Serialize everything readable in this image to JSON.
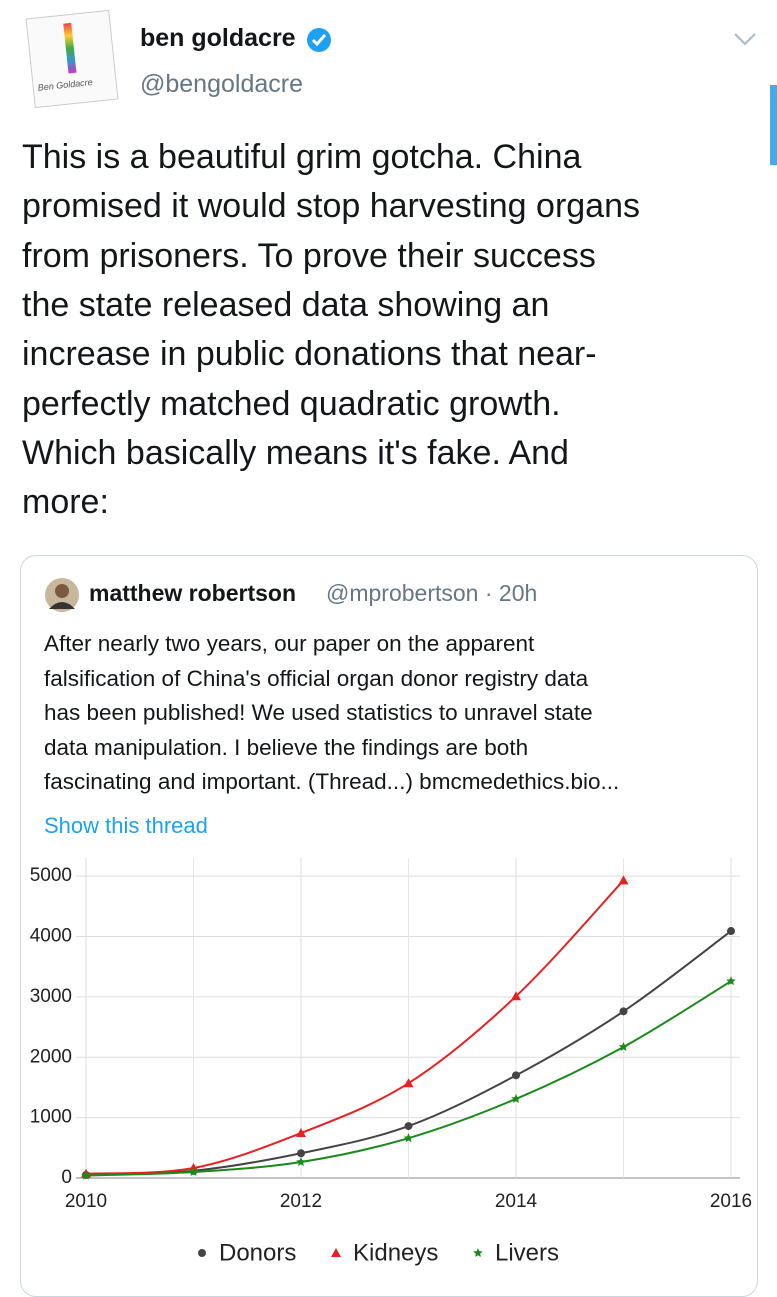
{
  "tweet": {
    "name": "ben goldacre",
    "handle": "@bengoldacre",
    "avatar_text": "Ben Goldacre",
    "text_lines": [
      "This is a beautiful grim gotcha. China",
      "promised it would stop harvesting organs",
      "from prisoners. To prove their success",
      "the state released data showing an",
      "increase in public donations that near-",
      "perfectly matched quadratic growth.",
      "Which basically means it's fake. And",
      "more:"
    ]
  },
  "quote": {
    "name": "matthew robertson",
    "handle_time": "@mprobertson · 20h",
    "text_lines": [
      "After nearly two years, our paper on the apparent",
      "falsification of China's official organ donor registry data",
      "has been published! We used statistics to unravel state",
      "data manipulation. I believe the findings are both",
      "fascinating and important. (Thread...) bmcmedethics.bio..."
    ],
    "show_thread": "Show this thread"
  },
  "chart_data": {
    "type": "line",
    "x": [
      2010,
      2011,
      2012,
      2013,
      2014,
      2015,
      2016
    ],
    "series": [
      {
        "name": "Donors",
        "color": "#444444",
        "marker": "circle",
        "values": [
          50,
          120,
          410,
          860,
          1700,
          2760,
          4090
        ]
      },
      {
        "name": "Kidneys",
        "color": "#e8201f",
        "marker": "triangle",
        "values": [
          70,
          165,
          745,
          1570,
          3010,
          4930,
          null
        ]
      },
      {
        "name": "Livers",
        "color": "#1a8a1a",
        "marker": "star",
        "values": [
          40,
          100,
          265,
          660,
          1310,
          2170,
          3260
        ]
      }
    ],
    "xlim": [
      2010,
      2016
    ],
    "ylim": [
      0,
      5300
    ],
    "xticks": [
      2010,
      2012,
      2014,
      2016
    ],
    "x_minor_ticks": [
      2011,
      2013,
      2015
    ],
    "yticks": [
      0,
      1000,
      2000,
      3000,
      4000,
      5000
    ],
    "grid": true,
    "legend": "bottom"
  }
}
